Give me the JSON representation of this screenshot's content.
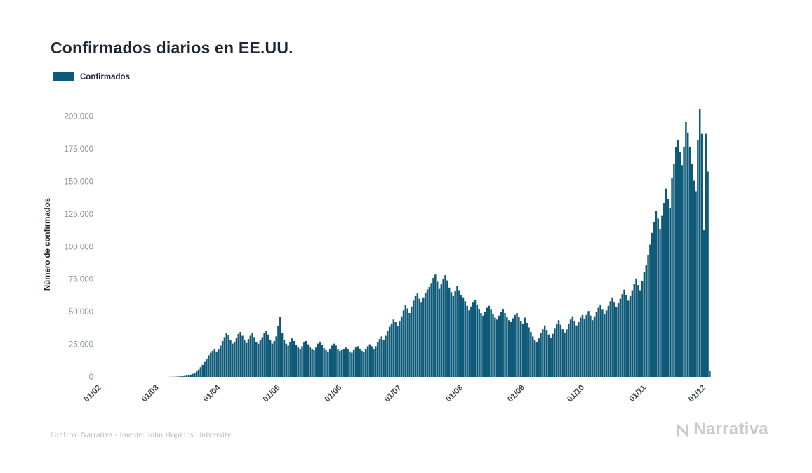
{
  "page": {
    "background": "#ffffff"
  },
  "header": {
    "title": "Confirmados diarios en EE.UU."
  },
  "legend": {
    "items": [
      {
        "label": "Confirmados",
        "color": "#0e5a78"
      }
    ]
  },
  "chart_data": {
    "type": "bar",
    "title": "Confirmados diarios en EE.UU.",
    "xlabel": "",
    "ylabel": "Número de confirmados",
    "bar_color": "#0e5a78",
    "grid": false,
    "legend_position": "top-left",
    "ylim": [
      0,
      210000
    ],
    "yticks": [
      {
        "value": 0,
        "label": "0"
      },
      {
        "value": 25000,
        "label": "25.000"
      },
      {
        "value": 50000,
        "label": "50.000"
      },
      {
        "value": 75000,
        "label": "75.000"
      },
      {
        "value": 100000,
        "label": "100.000"
      },
      {
        "value": 125000,
        "label": "125.000"
      },
      {
        "value": 150000,
        "label": "150.000"
      },
      {
        "value": 175000,
        "label": "175.000"
      },
      {
        "value": 200000,
        "label": "200.000"
      }
    ],
    "xticks": [
      {
        "label": "01/02",
        "index": 0
      },
      {
        "label": "01/03",
        "index": 29
      },
      {
        "label": "01/04",
        "index": 60
      },
      {
        "label": "01/05",
        "index": 90
      },
      {
        "label": "01/06",
        "index": 121
      },
      {
        "label": "01/07",
        "index": 151
      },
      {
        "label": "01/08",
        "index": 182
      },
      {
        "label": "01/09",
        "index": 213
      },
      {
        "label": "01/10",
        "index": 243
      },
      {
        "label": "01/11",
        "index": 274
      },
      {
        "label": "01/12",
        "index": 304
      }
    ],
    "series": [
      {
        "name": "Confirmados",
        "values": [
          0,
          0,
          0,
          1,
          0,
          0,
          2,
          0,
          0,
          1,
          0,
          0,
          0,
          1,
          0,
          0,
          0,
          2,
          1,
          0,
          0,
          3,
          2,
          4,
          3,
          5,
          6,
          8,
          10,
          15,
          25,
          35,
          45,
          60,
          85,
          110,
          140,
          180,
          240,
          320,
          420,
          560,
          740,
          980,
          1300,
          1700,
          2300,
          3100,
          4200,
          5600,
          7400,
          9200,
          11500,
          14000,
          16500,
          18500,
          20000,
          21500,
          19500,
          21000,
          24000,
          27500,
          30500,
          33500,
          32000,
          28500,
          25500,
          27000,
          30000,
          33000,
          34500,
          31500,
          28000,
          26000,
          29000,
          31500,
          33500,
          30500,
          27000,
          25500,
          28000,
          30500,
          33500,
          35500,
          32500,
          28500,
          25500,
          27500,
          31000,
          39000,
          46000,
          33500,
          28500,
          25500,
          24000,
          26500,
          29500,
          27500,
          24500,
          22500,
          21000,
          23500,
          26500,
          27500,
          25000,
          23000,
          21500,
          20500,
          22500,
          25500,
          27000,
          24500,
          22000,
          20500,
          19500,
          21500,
          24000,
          25500,
          24000,
          21500,
          20000,
          20500,
          21500,
          22500,
          21000,
          19500,
          18500,
          20500,
          22500,
          23500,
          21500,
          20000,
          19000,
          21500,
          23500,
          25000,
          23500,
          21500,
          23500,
          26500,
          29000,
          31000,
          28500,
          31500,
          35000,
          38500,
          41000,
          44000,
          42000,
          39000,
          42500,
          46500,
          51000,
          55000,
          52500,
          49000,
          54000,
          58500,
          62000,
          64000,
          60000,
          57000,
          61000,
          64500,
          67000,
          69000,
          72000,
          76000,
          78500,
          73000,
          67500,
          71000,
          75000,
          78000,
          74000,
          68500,
          65000,
          62000,
          66000,
          70000,
          66500,
          63000,
          61000,
          58000,
          54500,
          51000,
          54000,
          57000,
          59000,
          55500,
          52000,
          49000,
          47000,
          50000,
          53000,
          54500,
          51500,
          48000,
          45500,
          44000,
          47000,
          50000,
          52000,
          49000,
          46000,
          43500,
          42000,
          45000,
          47500,
          49000,
          46000,
          43000,
          41000,
          45500,
          41500,
          38000,
          34500,
          31000,
          28500,
          26500,
          29500,
          33500,
          36500,
          39500,
          36000,
          32500,
          30000,
          33000,
          37000,
          40500,
          43500,
          40000,
          36500,
          34000,
          36500,
          40500,
          44000,
          46500,
          43000,
          39500,
          42000,
          45500,
          47500,
          44500,
          47500,
          50500,
          47000,
          43500,
          46500,
          50000,
          53000,
          55500,
          51500,
          48000,
          51000,
          54500,
          58000,
          61000,
          57000,
          53500,
          56500,
          60000,
          63500,
          67000,
          62500,
          58500,
          62000,
          66500,
          71500,
          75500,
          70500,
          66500,
          73500,
          80500,
          85500,
          93500,
          101500,
          110500,
          118500,
          127500,
          121500,
          113500,
          123500,
          133500,
          144500,
          136500,
          129500,
          152500,
          163500,
          176500,
          181500,
          172500,
          162500,
          176500,
          195500,
          187500,
          176500,
          163500,
          150500,
          142500,
          181500,
          205500,
          186500,
          112500,
          186500,
          157500,
          4500
        ]
      }
    ]
  },
  "footer": {
    "credit": "Gráfico: Narrativa - Fuente: John Hopkins University",
    "brand": "Narrativa"
  }
}
